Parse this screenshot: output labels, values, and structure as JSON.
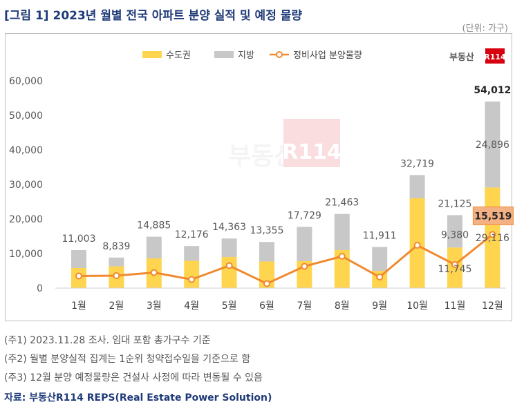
{
  "header": {
    "title": "[그림 1] 2023년 월별 전국 아파트 분양 실적 및 예정 물량",
    "unit": "(단위: 가구)"
  },
  "logo": {
    "text": "부동산",
    "badge": "R114"
  },
  "watermark": {
    "text": "부동산",
    "badge": "R114"
  },
  "colors": {
    "capital": "#FFD54F",
    "local": "#C8C8C8",
    "line": "#F08A30",
    "highlight_box": "#F4B183"
  },
  "chart_data": {
    "type": "bar",
    "stacked": true,
    "categories": [
      "1월",
      "2월",
      "3월",
      "4월",
      "5월",
      "6월",
      "7월",
      "8월",
      "9월",
      "10월",
      "11월",
      "12월"
    ],
    "series": [
      {
        "name": "수도권",
        "values": [
          5800,
          6300,
          8600,
          7900,
          9000,
          7700,
          7800,
          11000,
          5000,
          26000,
          11745,
          29116
        ]
      },
      {
        "name": "지방",
        "values": [
          5203,
          2539,
          6285,
          4276,
          5363,
          5655,
          9929,
          10463,
          6911,
          6719,
          9380,
          24896
        ]
      },
      {
        "name": "정비사업 분양물량",
        "type": "line",
        "values": [
          3500,
          3600,
          4500,
          2500,
          6500,
          1300,
          6300,
          9200,
          3200,
          12400,
          6800,
          15519
        ]
      }
    ],
    "totals": [
      11003,
      8839,
      14885,
      12176,
      14363,
      13355,
      17729,
      21463,
      11911,
      32719,
      21125,
      54012
    ],
    "total_labels": [
      "11,003",
      "8,839",
      "14,885",
      "12,176",
      "14,363",
      "13,355",
      "17,729",
      "21,463",
      "11,911",
      "32,719",
      "21,125",
      "54,012"
    ],
    "segment_labels": [
      {
        "month": "11월",
        "series": "지방",
        "text": "9,380"
      },
      {
        "month": "11월",
        "series": "수도권",
        "text": "11,745"
      },
      {
        "month": "12월",
        "series": "지방",
        "text": "24,896"
      },
      {
        "month": "12월",
        "series": "수도권",
        "text": "29,116"
      }
    ],
    "line_label": {
      "month": "12월",
      "text": "15,519"
    },
    "y_ticks": [
      "60,000",
      "50,000",
      "40,000",
      "30,000",
      "20,000",
      "10,000",
      "0"
    ],
    "ylim": [
      0,
      60000
    ],
    "legend_position": "top"
  },
  "notes": [
    "(주1) 2023.11.28 조사. 임대 포함 총가구수 기준",
    "(주2) 월별 분양실적 집계는 1순위 청약접수일을 기준으로 함",
    "(주3) 12월 분양 예정물량은 건설사 사정에 따라 변동될 수 있음"
  ],
  "source": "자료: 부동산R114 REPS(Real Estate Power Solution)"
}
